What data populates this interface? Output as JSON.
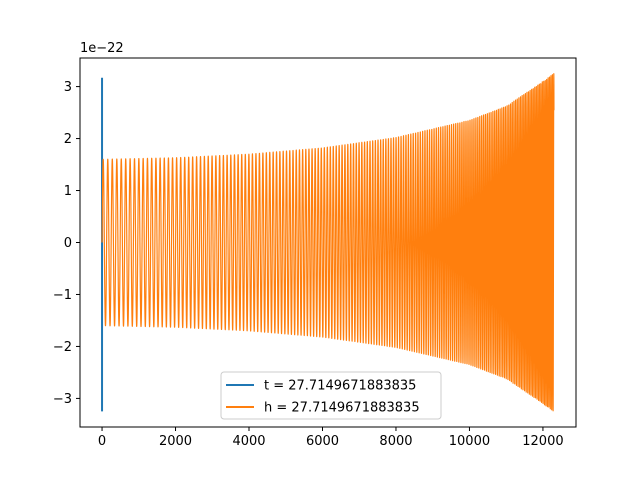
{
  "chart_data": {
    "type": "line",
    "title": "",
    "xlabel": "",
    "ylabel": "",
    "y_offset_label": "1e−22",
    "xlim": [
      -600,
      12900
    ],
    "ylim": [
      -3.55,
      3.55
    ],
    "x_ticks": [
      {
        "value": 0,
        "label": "0"
      },
      {
        "value": 2000,
        "label": "2000"
      },
      {
        "value": 4000,
        "label": "4000"
      },
      {
        "value": 6000,
        "label": "6000"
      },
      {
        "value": 8000,
        "label": "8000"
      },
      {
        "value": 10000,
        "label": "10000"
      },
      {
        "value": 12000,
        "label": "12000"
      }
    ],
    "y_ticks": [
      {
        "value": -3,
        "label": "−3"
      },
      {
        "value": -2,
        "label": "−2"
      },
      {
        "value": -1,
        "label": "−1"
      },
      {
        "value": 0,
        "label": "0"
      },
      {
        "value": 1,
        "label": "1"
      },
      {
        "value": 2,
        "label": "2"
      },
      {
        "value": 3,
        "label": "3"
      }
    ],
    "grid": false,
    "legend_position": "bottom-center",
    "series": [
      {
        "name": "t = 27.7149671883835",
        "color": "#1f77b4",
        "x": [
          0,
          0,
          0,
          0
        ],
        "y": [
          -0.9,
          3.17,
          -3.25,
          0.3
        ]
      },
      {
        "name": "h = 27.7149671883835",
        "color": "#ff7f0e",
        "description_shape": "chirp",
        "x_start": 0,
        "x_end": 12300,
        "envelope": [
          {
            "x": 0,
            "y": 1.6
          },
          {
            "x": 2000,
            "y": 1.63
          },
          {
            "x": 4000,
            "y": 1.7
          },
          {
            "x": 6000,
            "y": 1.82
          },
          {
            "x": 8000,
            "y": 2.02
          },
          {
            "x": 10000,
            "y": 2.35
          },
          {
            "x": 11000,
            "y": 2.62
          },
          {
            "x": 11800,
            "y": 3.0
          },
          {
            "x": 12300,
            "y": 3.25
          }
        ],
        "cycle_period_start": 125,
        "cycle_period_end": 38
      }
    ]
  }
}
